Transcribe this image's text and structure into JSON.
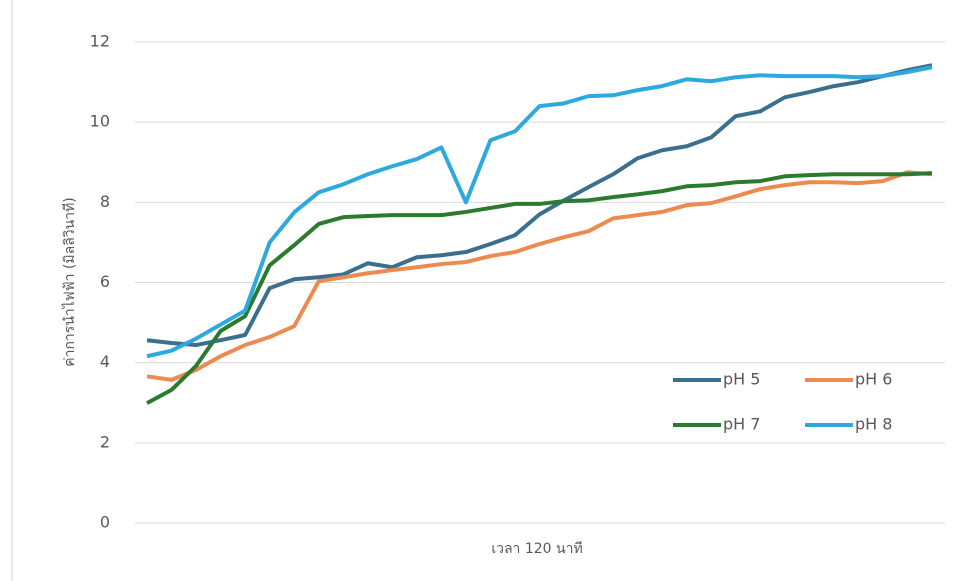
{
  "chart_data": {
    "type": "line",
    "y_label": "ค่าการนำไฟฟ้า (มิลลิวินาที)",
    "x_label": "เวลา 120 นาที",
    "categories": [
      null,
      null,
      null,
      null,
      null,
      null,
      null,
      null,
      null,
      null,
      null,
      null,
      null,
      null,
      null,
      null,
      null,
      null,
      null,
      null,
      null,
      null,
      null,
      null,
      null,
      null,
      null,
      null,
      null,
      null,
      null,
      null,
      null
    ],
    "ylim": [
      0,
      12
    ],
    "yticks": [
      0,
      2,
      4,
      6,
      8,
      10,
      12
    ],
    "grid": true,
    "legend": "lower right",
    "series": [
      {
        "name": "pH 5",
        "color": "#3a6f8f",
        "values": [
          4.56,
          4.49,
          4.44,
          4.56,
          4.69,
          5.86,
          6.08,
          6.13,
          6.2,
          6.48,
          6.38,
          6.63,
          6.68,
          6.76,
          6.96,
          7.18,
          7.7,
          8.05,
          8.38,
          8.7,
          9.1,
          9.3,
          9.4,
          9.62,
          10.15,
          10.27,
          10.62,
          10.75,
          10.9,
          11.0,
          11.15,
          11.3,
          11.42
        ]
      },
      {
        "name": "pH 6",
        "color": "#ed8a4f",
        "values": [
          3.66,
          3.57,
          3.82,
          4.16,
          4.44,
          4.64,
          4.91,
          6.03,
          6.13,
          6.23,
          6.31,
          6.38,
          6.46,
          6.51,
          6.66,
          6.76,
          6.96,
          7.13,
          7.28,
          7.6,
          7.68,
          7.76,
          7.93,
          7.98,
          8.15,
          8.33,
          8.43,
          8.5,
          8.5,
          8.48,
          8.53,
          8.75,
          8.7
        ]
      },
      {
        "name": "pH 7",
        "color": "#2b7a2e",
        "values": [
          2.99,
          3.32,
          3.92,
          4.79,
          5.16,
          6.43,
          6.93,
          7.46,
          7.63,
          7.66,
          7.68,
          7.68,
          7.68,
          7.76,
          7.86,
          7.96,
          7.96,
          8.03,
          8.05,
          8.13,
          8.2,
          8.28,
          8.4,
          8.43,
          8.5,
          8.53,
          8.65,
          8.68,
          8.7,
          8.7,
          8.7,
          8.7,
          8.73
        ]
      },
      {
        "name": "pH 8",
        "color": "#2ea9df",
        "values": [
          4.16,
          4.3,
          4.6,
          4.95,
          5.3,
          7.0,
          7.75,
          8.25,
          8.45,
          8.7,
          8.9,
          9.08,
          9.37,
          8.0,
          9.55,
          9.77,
          10.4,
          10.47,
          10.65,
          10.67,
          10.8,
          10.9,
          11.07,
          11.02,
          11.12,
          11.17,
          11.15,
          11.15,
          11.15,
          11.12,
          11.15,
          11.25,
          11.37
        ]
      }
    ]
  }
}
